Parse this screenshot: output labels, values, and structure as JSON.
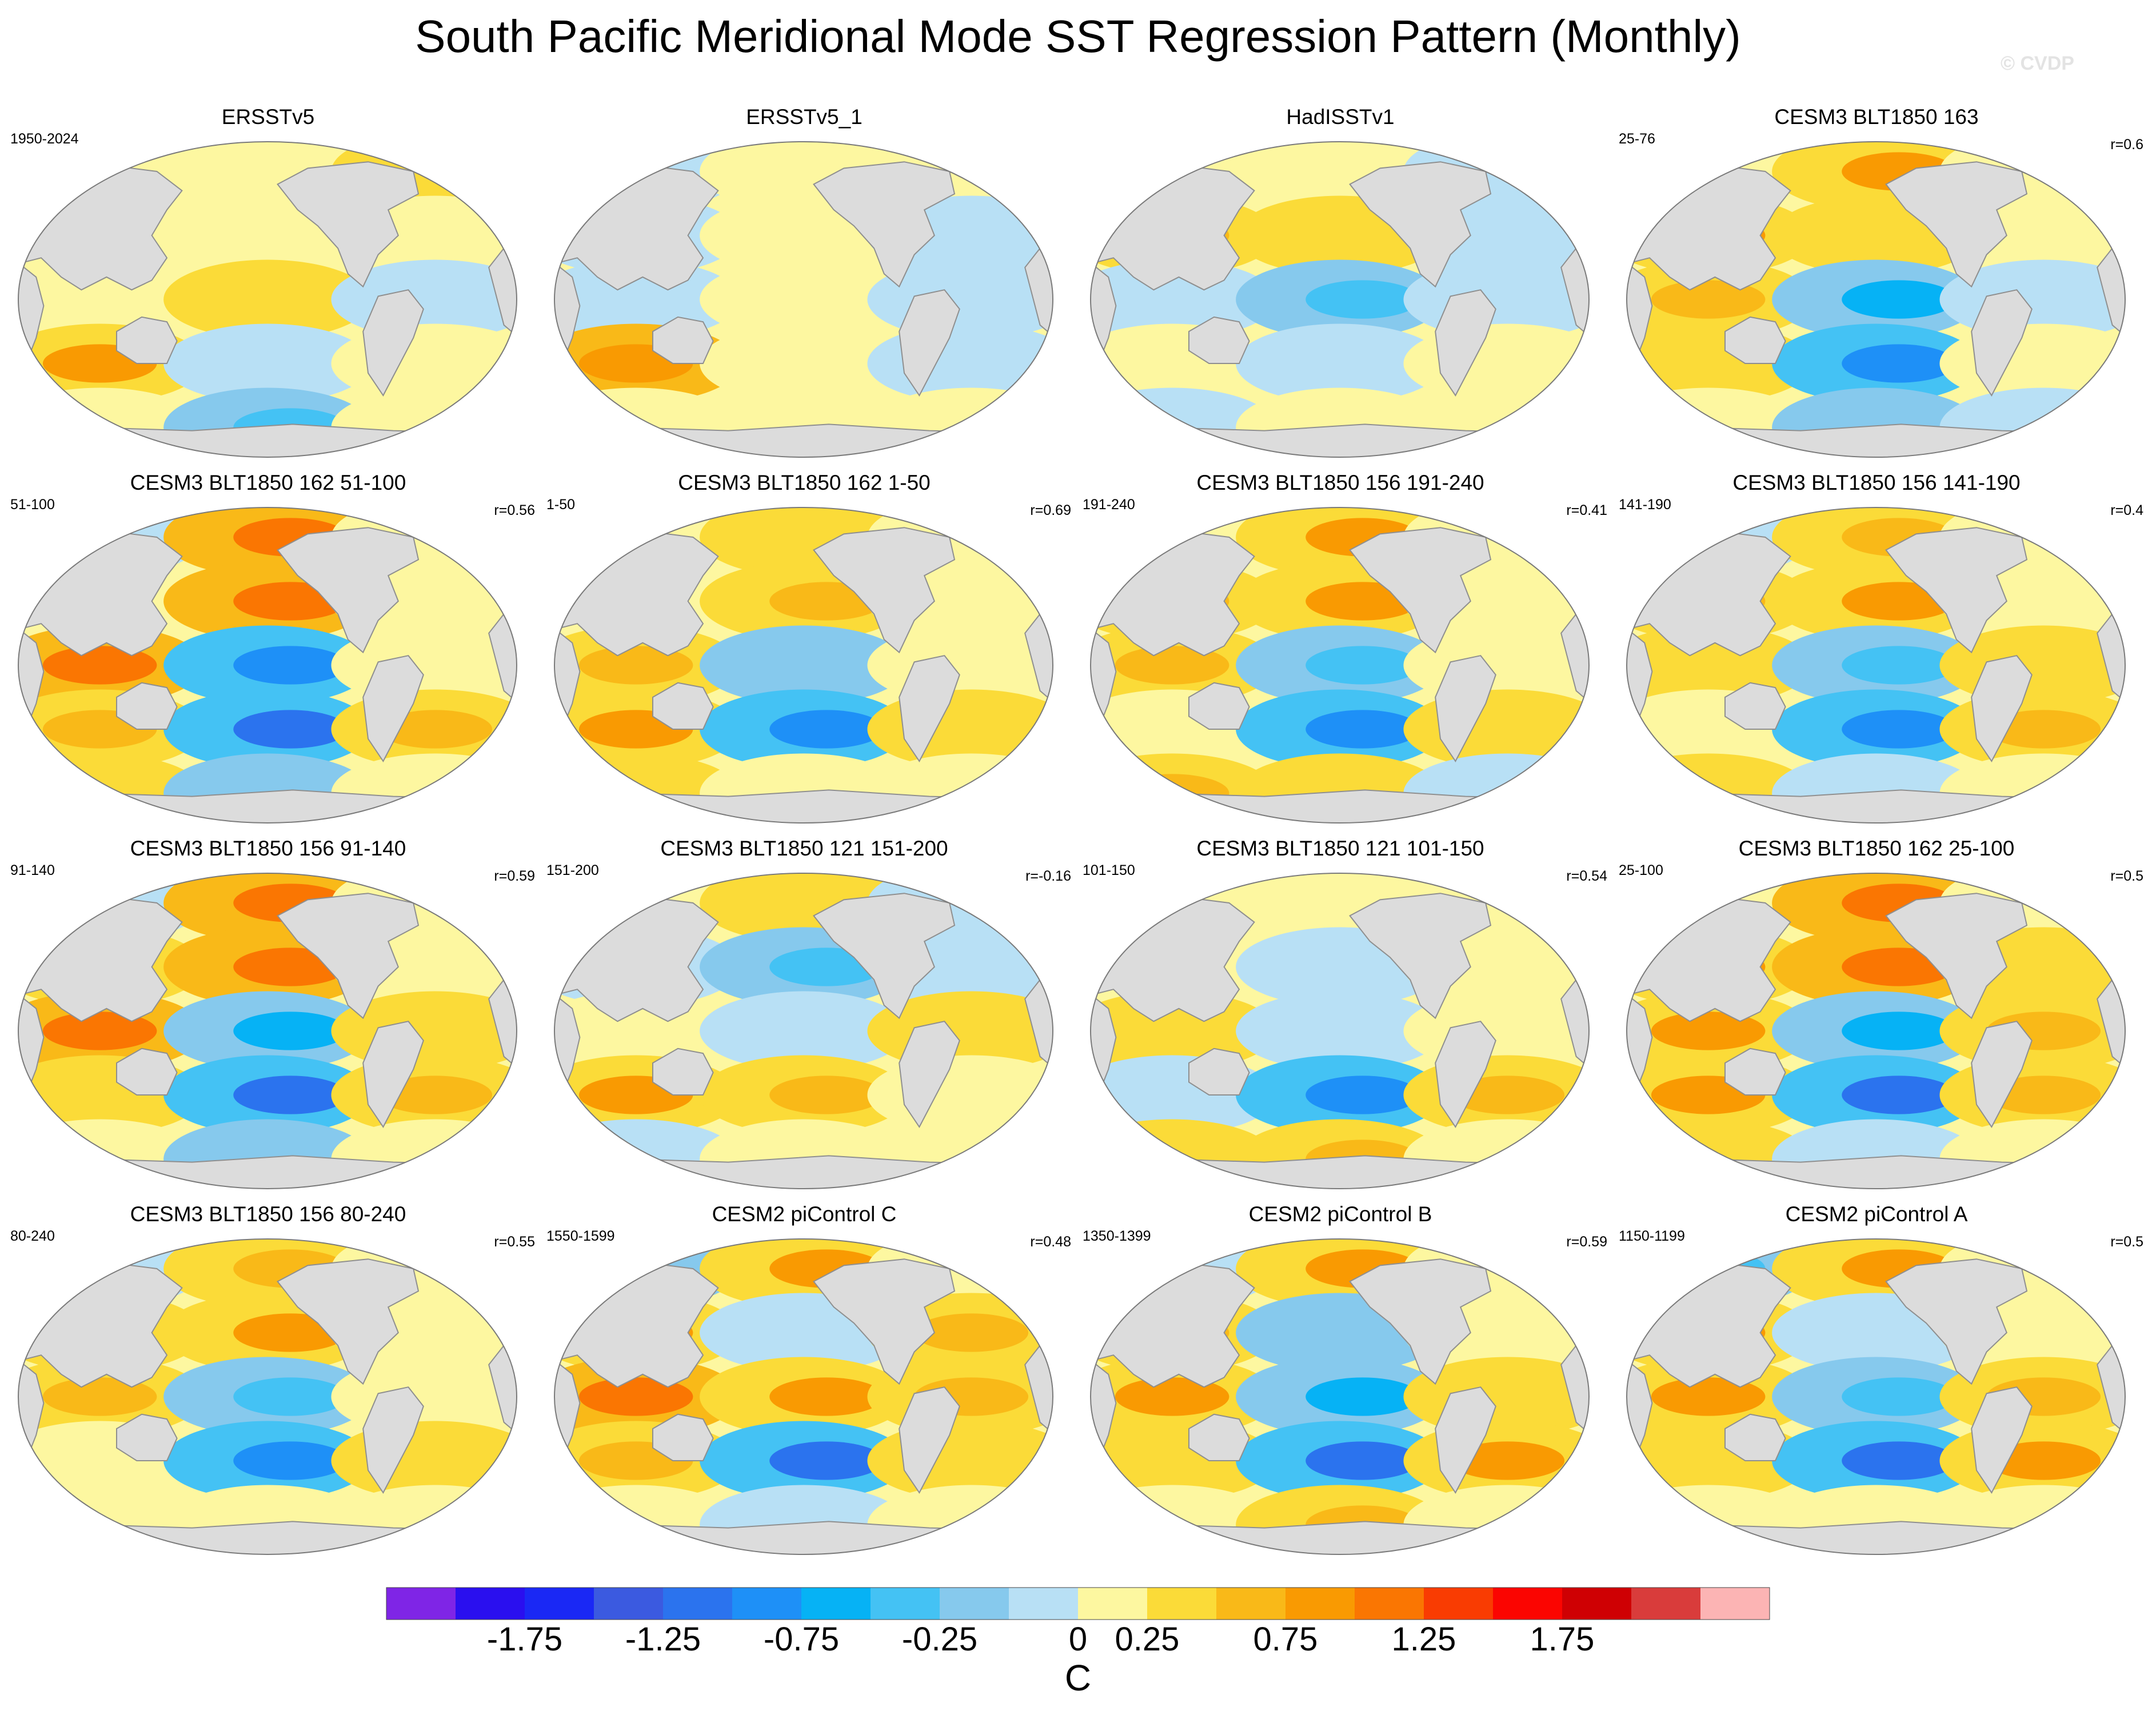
{
  "figure": {
    "title": "South Pacific Meridional Mode SST Regression Pattern (Monthly)",
    "watermark": "© CVDP"
  },
  "colors": {
    "land": "#dcdcdc",
    "coast": "#8f8f8f",
    "levels": [
      "#7f25e6",
      "#2a0fef",
      "#1a28f5",
      "#3b5ae0",
      "#2b73ee",
      "#1e90f7",
      "#06b2f5",
      "#44c2f4",
      "#86c9ed",
      "#b8e0f5",
      "#fdf7a0",
      "#fbdb38",
      "#f9b918",
      "#f99a02",
      "#fa7602",
      "#f93c02",
      "#fb0501",
      "#cf0003",
      "#d93c3b",
      "#fcb4b4"
    ]
  },
  "chart_data": {
    "type": "heatmap",
    "projection": "Robinson (Pacific-centered global SST maps)",
    "variable": "SST regression onto South Pacific Meridional Mode index",
    "units": "C",
    "colorbar": {
      "label": "C",
      "tick_labels": [
        "-1.75",
        "-1.25",
        "-0.75",
        "-0.25",
        "0",
        "0.25",
        "0.75",
        "1.25",
        "1.75"
      ],
      "n_colors": 20
    },
    "panels": [
      {
        "title": "ERSSTv5",
        "left": "1950-2024",
        "right": "",
        "pattern": [
          [
            0.35,
            0.45,
            0.5
          ],
          [
            0.22,
            0.35,
            0.25
          ],
          [
            0.1,
            0.5,
            -0.3
          ],
          [
            0.8,
            -0.3,
            0.3
          ],
          [
            0.3,
            -0.7,
            0.3
          ]
        ]
      },
      {
        "title": "ERSSTv5_1",
        "left": "",
        "right": "",
        "pattern": [
          [
            -0.2,
            0.4,
            0.3
          ],
          [
            -0.3,
            0.1,
            -0.2
          ],
          [
            -0.4,
            0.2,
            -0.3
          ],
          [
            0.95,
            0.3,
            -0.2
          ],
          [
            0.4,
            0.2,
            0.4
          ]
        ]
      },
      {
        "title": "HadISSTv1",
        "left": "",
        "right": "",
        "pattern": [
          [
            0.2,
            0.3,
            -0.2
          ],
          [
            0.6,
            0.5,
            -0.3
          ],
          [
            -0.2,
            -0.6,
            -0.2
          ],
          [
            0.3,
            -0.4,
            0.3
          ],
          [
            -0.2,
            0.3,
            0.2
          ]
        ]
      },
      {
        "title": "CESM3 BLT1850 163",
        "left": "25-76",
        "right": "r=0.6",
        "pattern": [
          [
            0.2,
            0.8,
            0.2
          ],
          [
            0.8,
            0.5,
            0.2
          ],
          [
            0.6,
            -0.9,
            -0.3
          ],
          [
            0.5,
            -1.2,
            0.4
          ],
          [
            0.3,
            -0.5,
            -0.4
          ]
        ]
      },
      {
        "title": "CESM3 BLT1850 162 51-100",
        "left": "51-100",
        "right": "r=0.56",
        "pattern": [
          [
            -0.3,
            1.0,
            0.3
          ],
          [
            0.3,
            1.0,
            0.3
          ],
          [
            1.1,
            -1.0,
            0.4
          ],
          [
            0.6,
            -1.3,
            0.7
          ],
          [
            0.5,
            -0.5,
            0.3
          ]
        ]
      },
      {
        "title": "CESM3 BLT1850 162 1-50",
        "left": "1-50",
        "right": "r=0.69",
        "pattern": [
          [
            0.2,
            0.5,
            0.3
          ],
          [
            0.4,
            0.7,
            0.4
          ],
          [
            0.6,
            -0.5,
            0.3
          ],
          [
            0.8,
            -1.2,
            0.5
          ],
          [
            0.5,
            0.3,
            0.4
          ]
        ]
      },
      {
        "title": "CESM3 BLT1850 156 191-240",
        "left": "191-240",
        "right": "r=0.41",
        "pattern": [
          [
            0.2,
            0.8,
            0.1
          ],
          [
            0.6,
            0.9,
            0.3
          ],
          [
            0.7,
            -0.6,
            0.2
          ],
          [
            0.3,
            -1.0,
            0.5
          ],
          [
            0.6,
            0.5,
            -0.3
          ]
        ]
      },
      {
        "title": "CESM3 BLT1850 156 141-190",
        "left": "141-190",
        "right": "r=0.4",
        "pattern": [
          [
            -0.3,
            0.6,
            0.2
          ],
          [
            0.7,
            0.8,
            0.3
          ],
          [
            0.5,
            -0.7,
            0.5
          ],
          [
            0.4,
            -1.2,
            0.6
          ],
          [
            0.5,
            -0.3,
            0.3
          ]
        ]
      },
      {
        "title": "CESM3 BLT1850 156 91-140",
        "left": "91-140",
        "right": "r=0.59",
        "pattern": [
          [
            -0.4,
            1.0,
            0.3
          ],
          [
            0.5,
            1.0,
            0.4
          ],
          [
            1.0,
            -0.8,
            0.5
          ],
          [
            0.5,
            -1.3,
            0.6
          ],
          [
            0.4,
            -0.5,
            0.2
          ]
        ]
      },
      {
        "title": "CESM3 BLT1850 121 151-200",
        "left": "151-200",
        "right": "r=-0.16",
        "pattern": [
          [
            0.3,
            0.5,
            -0.3
          ],
          [
            -0.4,
            -0.6,
            -0.2
          ],
          [
            0.2,
            -0.4,
            0.5
          ],
          [
            0.9,
            0.6,
            0.3
          ],
          [
            -0.2,
            0.3,
            0.3
          ]
        ]
      },
      {
        "title": "CESM3 BLT1850 121 101-150",
        "left": "101-150",
        "right": "r=0.54",
        "pattern": [
          [
            0.2,
            0.3,
            0.2
          ],
          [
            0.4,
            -0.4,
            0.3
          ],
          [
            0.5,
            -0.3,
            0.4
          ],
          [
            -0.4,
            -1.0,
            0.6
          ],
          [
            0.5,
            0.7,
            0.3
          ]
        ]
      },
      {
        "title": "CESM3 BLT1850 162 25-100",
        "left": "25-100",
        "right": "r=0.5",
        "pattern": [
          [
            0.2,
            1.0,
            0.3
          ],
          [
            0.9,
            1.1,
            0.5
          ],
          [
            0.9,
            -0.8,
            0.6
          ],
          [
            0.8,
            -1.3,
            0.7
          ],
          [
            0.5,
            -0.2,
            0.4
          ]
        ]
      },
      {
        "title": "CESM3 BLT1850 156 80-240",
        "left": "80-240",
        "right": "r=0.55",
        "pattern": [
          [
            -0.2,
            0.7,
            0.3
          ],
          [
            0.5,
            0.8,
            0.2
          ],
          [
            0.6,
            -0.6,
            0.4
          ],
          [
            0.3,
            -1.1,
            0.5
          ],
          [
            0.4,
            0.3,
            0.2
          ]
        ]
      },
      {
        "title": "CESM2 piControl C",
        "left": "1550-1599",
        "right": "r=0.48",
        "pattern": [
          [
            -0.5,
            0.9,
            0.3
          ],
          [
            0.8,
            -0.4,
            0.7
          ],
          [
            1.0,
            0.8,
            0.7
          ],
          [
            0.6,
            -1.3,
            0.5
          ],
          [
            0.4,
            -0.4,
            0.3
          ]
        ]
      },
      {
        "title": "CESM2 piControl B",
        "left": "1350-1399",
        "right": "r=0.59",
        "pattern": [
          [
            -0.3,
            0.8,
            0.3
          ],
          [
            0.7,
            -0.5,
            0.4
          ],
          [
            0.9,
            -0.8,
            0.5
          ],
          [
            0.5,
            -1.3,
            0.8
          ],
          [
            0.3,
            0.6,
            0.2
          ]
        ]
      },
      {
        "title": "CESM2 piControl A",
        "left": "1150-1199",
        "right": "r=0.5",
        "pattern": [
          [
            -0.6,
            0.9,
            0.3
          ],
          [
            0.9,
            -0.4,
            0.4
          ],
          [
            0.8,
            -0.6,
            0.6
          ],
          [
            0.5,
            -1.3,
            0.9
          ],
          [
            0.4,
            0.4,
            0.2
          ]
        ]
      }
    ]
  }
}
